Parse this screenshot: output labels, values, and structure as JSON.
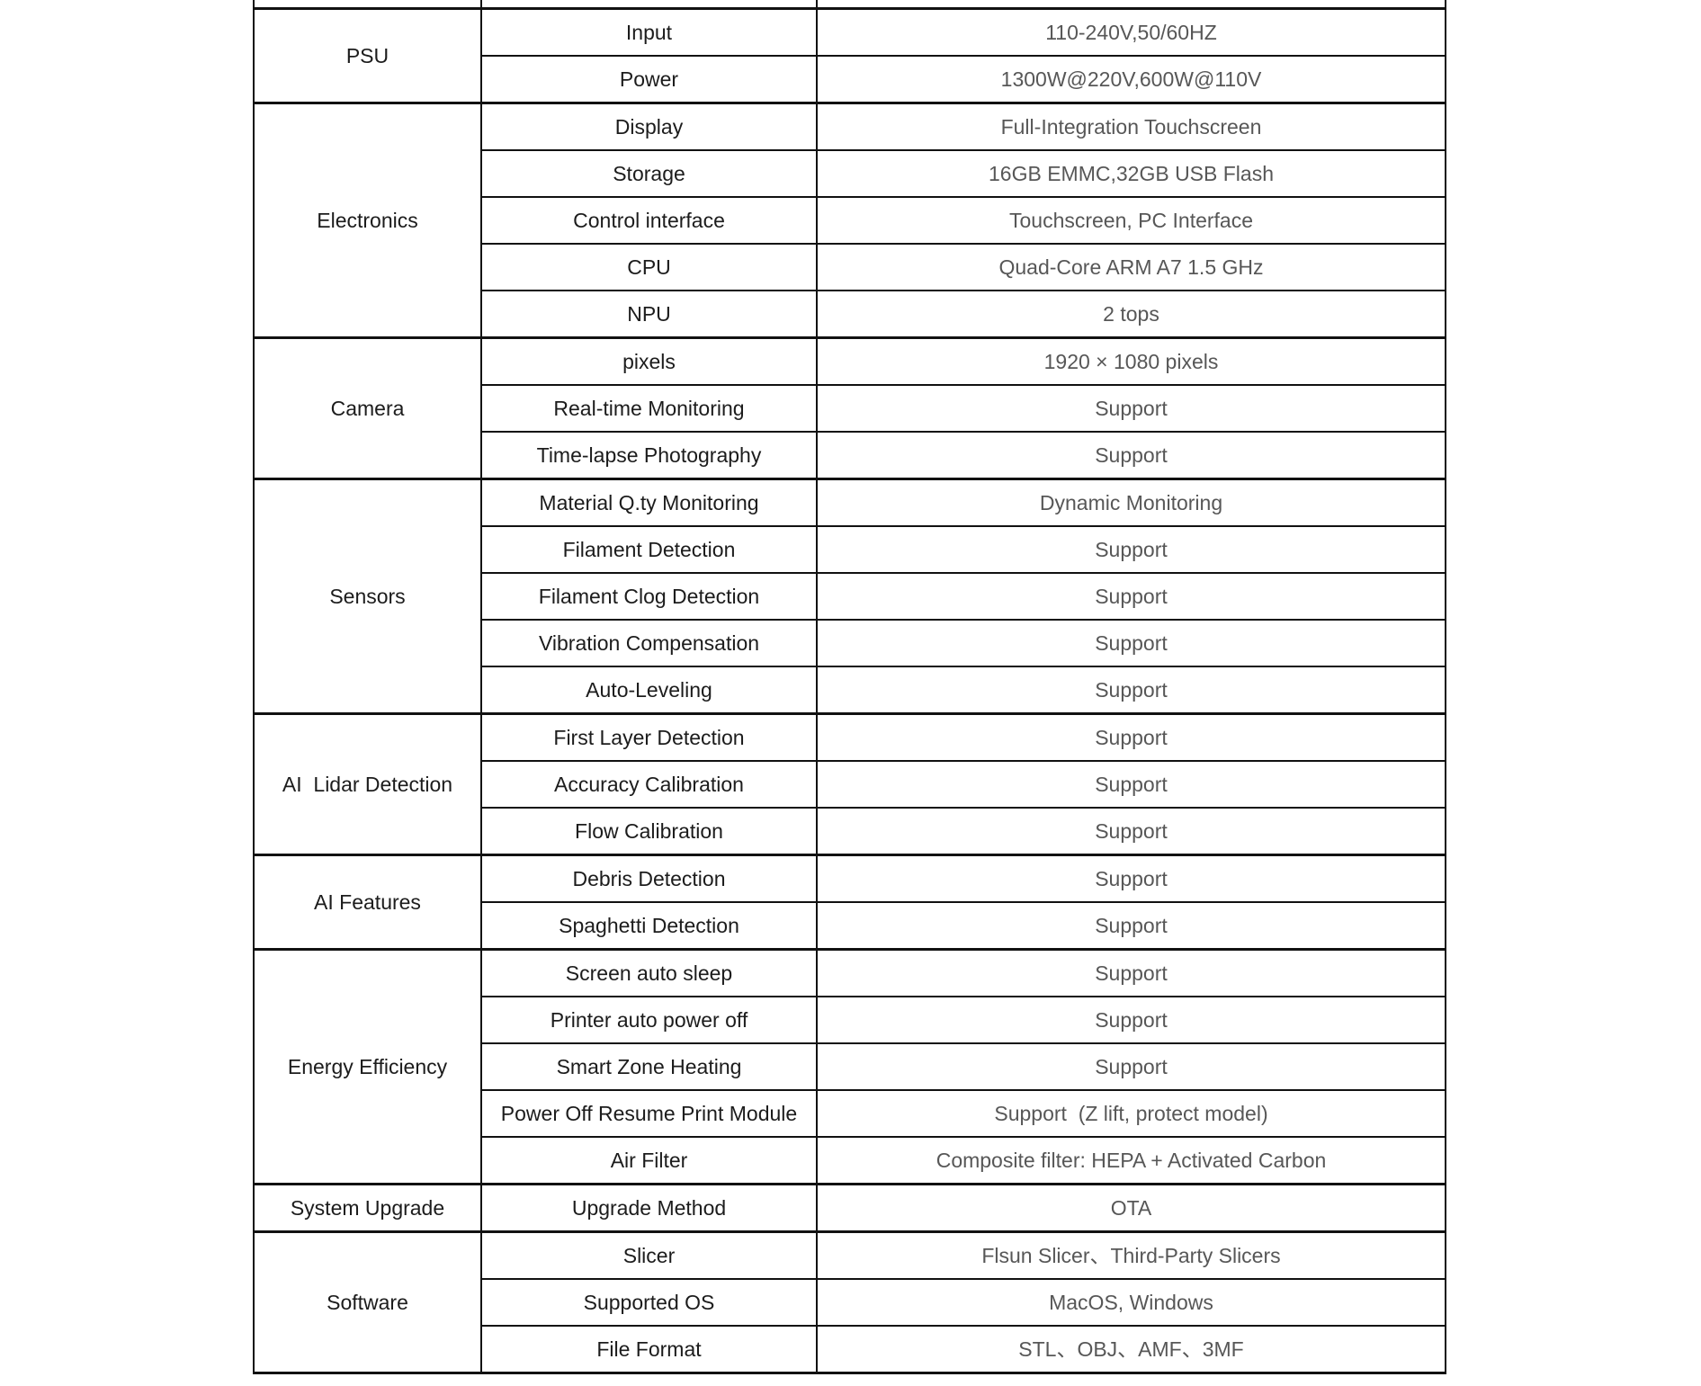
{
  "page": {
    "background": "#ffffff"
  },
  "colors": {
    "border": "#111111",
    "label_text": "#1c1c1c",
    "value_text": "#575757"
  },
  "table": {
    "sections": [
      {
        "category": "PSU",
        "rows": [
          {
            "label": "Input",
            "value": "110-240V,50/60HZ"
          },
          {
            "label": "Power",
            "value": "1300W@220V,600W@110V"
          }
        ]
      },
      {
        "category": "Electronics",
        "rows": [
          {
            "label": "Display",
            "value": "Full-Integration Touchscreen"
          },
          {
            "label": "Storage",
            "value": "16GB EMMC,32GB USB Flash"
          },
          {
            "label": "Control interface",
            "value": "Touchscreen, PC Interface"
          },
          {
            "label": "CPU",
            "value": "Quad-Core ARM A7 1.5 GHz"
          },
          {
            "label": "NPU",
            "value": "2 tops"
          }
        ]
      },
      {
        "category": "Camera",
        "rows": [
          {
            "label": "pixels",
            "value": "1920 × 1080 pixels"
          },
          {
            "label": "Real-time Monitoring",
            "value": "Support"
          },
          {
            "label": "Time-lapse Photography",
            "value": "Support"
          }
        ]
      },
      {
        "category": "Sensors",
        "rows": [
          {
            "label": "Material Q.ty Monitoring",
            "value": "Dynamic Monitoring"
          },
          {
            "label": "Filament Detection",
            "value": "Support"
          },
          {
            "label": "Filament Clog Detection",
            "value": "Support"
          },
          {
            "label": "Vibration Compensation",
            "value": "Support"
          },
          {
            "label": "Auto-Leveling",
            "value": "Support"
          }
        ]
      },
      {
        "category": "AI  Lidar Detection",
        "rows": [
          {
            "label": "First Layer Detection",
            "value": "Support"
          },
          {
            "label": "Accuracy Calibration",
            "value": "Support"
          },
          {
            "label": "Flow Calibration",
            "value": "Support"
          }
        ]
      },
      {
        "category": "AI Features",
        "rows": [
          {
            "label": "Debris Detection",
            "value": "Support"
          },
          {
            "label": "Spaghetti Detection",
            "value": "Support"
          }
        ]
      },
      {
        "category": "Energy Efficiency",
        "rows": [
          {
            "label": "Screen auto sleep",
            "value": "Support"
          },
          {
            "label": "Printer auto power off",
            "value": "Support"
          },
          {
            "label": "Smart Zone Heating",
            "value": "Support"
          },
          {
            "label": "Power Off Resume Print Module",
            "value": "Support  (Z lift, protect model)"
          },
          {
            "label": "Air Filter",
            "value": "Composite filter: HEPA + Activated Carbon"
          }
        ]
      },
      {
        "category": "System Upgrade",
        "rows": [
          {
            "label": "Upgrade Method",
            "value": "OTA"
          }
        ]
      },
      {
        "category": "Software",
        "rows": [
          {
            "label": "Slicer",
            "value": "Flsun Slicer、Third-Party Slicers"
          },
          {
            "label": "Supported OS",
            "value": "MacOS, Windows"
          },
          {
            "label": "File Format",
            "value": "STL、OBJ、AMF、3MF"
          }
        ]
      }
    ]
  }
}
